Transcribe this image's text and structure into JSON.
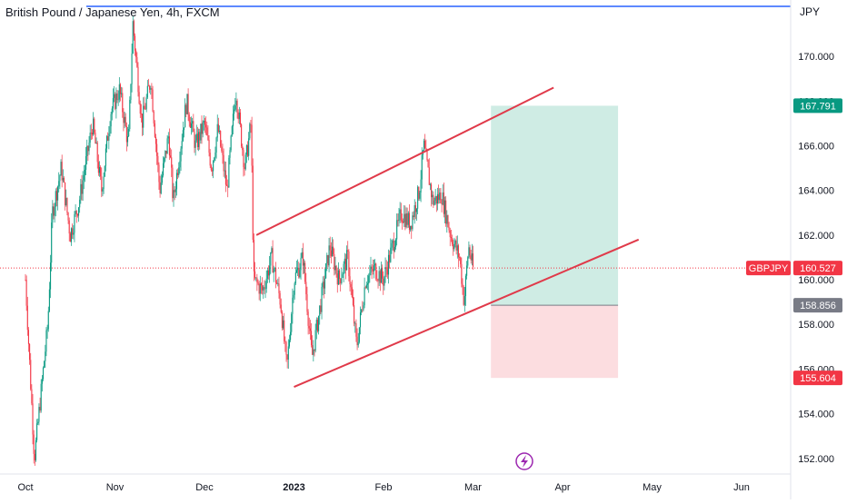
{
  "chart": {
    "title": "British Pound / Japanese Yen, 4h, FXCM",
    "currency": "JPY",
    "symbol_tag": "GBPJPY",
    "last_price_label": "160.527",
    "target_label": "167.791",
    "entry_label": "158.856",
    "stop_label": "155.604"
  },
  "chart_data": {
    "type": "candlestick",
    "title": "British Pound / Japanese Yen, 4h, FXCM",
    "instrument": "GBPJPY",
    "timeframe": "4h",
    "source": "FXCM",
    "y_axis": {
      "side": "right",
      "ylim": [
        151.3,
        172.2
      ],
      "ticks": [
        152.0,
        154.0,
        156.0,
        158.0,
        160.0,
        162.0,
        164.0,
        166.0,
        168.0,
        170.0
      ]
    },
    "x_axis": {
      "tick_labels": [
        "Oct",
        "Nov",
        "Dec",
        "2023",
        "Feb",
        "Mar",
        "Apr",
        "May",
        "Jun"
      ]
    },
    "price_path": [
      {
        "t": 0.0,
        "p": 160.0
      },
      {
        "t": 0.1,
        "p": 152.0
      },
      {
        "t": 0.25,
        "p": 158.0
      },
      {
        "t": 0.3,
        "p": 163.0
      },
      {
        "t": 0.4,
        "p": 165.0
      },
      {
        "t": 0.5,
        "p": 162.0
      },
      {
        "t": 0.6,
        "p": 163.5
      },
      {
        "t": 0.75,
        "p": 167.0
      },
      {
        "t": 0.85,
        "p": 164.0
      },
      {
        "t": 0.95,
        "p": 167.5
      },
      {
        "t": 1.05,
        "p": 168.5
      },
      {
        "t": 1.15,
        "p": 166.0
      },
      {
        "t": 1.2,
        "p": 171.5
      },
      {
        "t": 1.3,
        "p": 167.0
      },
      {
        "t": 1.4,
        "p": 169.0
      },
      {
        "t": 1.5,
        "p": 164.0
      },
      {
        "t": 1.6,
        "p": 166.5
      },
      {
        "t": 1.65,
        "p": 163.5
      },
      {
        "t": 1.8,
        "p": 168.0
      },
      {
        "t": 1.9,
        "p": 166.0
      },
      {
        "t": 2.0,
        "p": 167.0
      },
      {
        "t": 2.08,
        "p": 165.0
      },
      {
        "t": 2.15,
        "p": 166.8
      },
      {
        "t": 2.25,
        "p": 164.0
      },
      {
        "t": 2.35,
        "p": 168.5
      },
      {
        "t": 2.45,
        "p": 165.0
      },
      {
        "t": 2.52,
        "p": 167.0
      },
      {
        "t": 2.55,
        "p": 160.0
      },
      {
        "t": 2.65,
        "p": 159.5
      },
      {
        "t": 2.75,
        "p": 161.0
      },
      {
        "t": 2.85,
        "p": 159.0
      },
      {
        "t": 2.92,
        "p": 156.0
      },
      {
        "t": 3.0,
        "p": 160.0
      },
      {
        "t": 3.1,
        "p": 161.0
      },
      {
        "t": 3.2,
        "p": 156.5
      },
      {
        "t": 3.3,
        "p": 159.0
      },
      {
        "t": 3.4,
        "p": 161.5
      },
      {
        "t": 3.5,
        "p": 160.0
      },
      {
        "t": 3.6,
        "p": 161.0
      },
      {
        "t": 3.7,
        "p": 157.0
      },
      {
        "t": 3.8,
        "p": 160.0
      },
      {
        "t": 3.9,
        "p": 160.5
      },
      {
        "t": 4.0,
        "p": 160.0
      },
      {
        "t": 4.1,
        "p": 161.5
      },
      {
        "t": 4.2,
        "p": 163.0
      },
      {
        "t": 4.3,
        "p": 162.5
      },
      {
        "t": 4.4,
        "p": 164.0
      },
      {
        "t": 4.45,
        "p": 166.0
      },
      {
        "t": 4.55,
        "p": 163.5
      },
      {
        "t": 4.65,
        "p": 163.8
      },
      {
        "t": 4.75,
        "p": 162.0
      },
      {
        "t": 4.85,
        "p": 161.0
      },
      {
        "t": 4.9,
        "p": 159.0
      },
      {
        "t": 4.95,
        "p": 161.5
      },
      {
        "t": 5.0,
        "p": 160.5
      }
    ],
    "last_price": 160.527,
    "overlays": {
      "channel_upper": [
        {
          "t": 2.58,
          "p": 162.0
        },
        {
          "t": 5.9,
          "p": 168.6
        }
      ],
      "channel_lower": [
        {
          "t": 3.0,
          "p": 155.2
        },
        {
          "t": 6.85,
          "p": 161.8
        }
      ],
      "position": {
        "t_start": 5.2,
        "t_end": 6.62,
        "entry": 158.856,
        "target": 167.791,
        "stop": 155.604
      }
    },
    "colors": {
      "up": "#089981",
      "down": "#f23645",
      "trendline": "#e03a4a",
      "target_zone": "#bfe6db",
      "stop_zone": "#fbd4d8",
      "last_price_tag": "#f23645",
      "target_tag": "#089981",
      "entry_tag": "#787b86"
    }
  }
}
